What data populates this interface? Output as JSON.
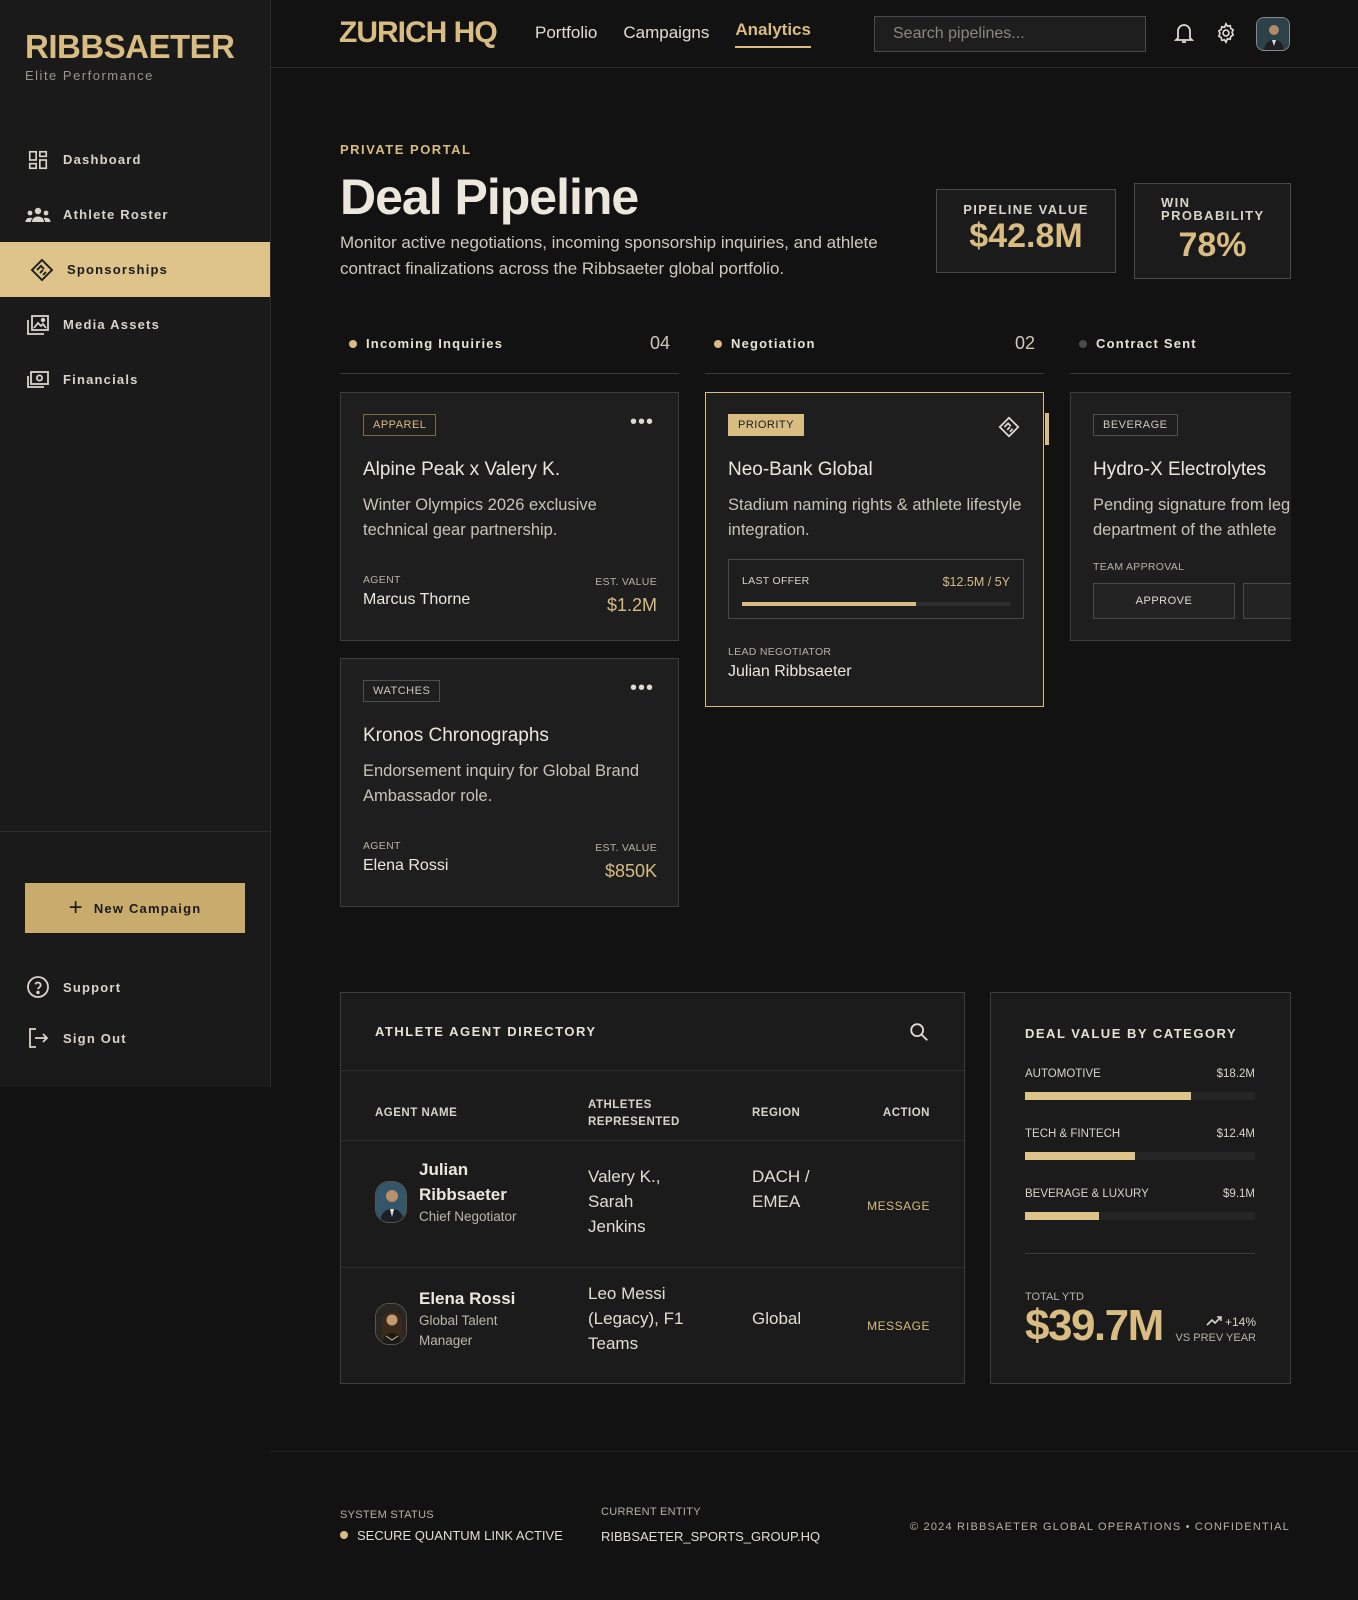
{
  "sidebar": {
    "brand": "RIBBSAETER",
    "tagline": "Elite Performance",
    "items": [
      {
        "label": "Dashboard",
        "icon": "dashboard-icon"
      },
      {
        "label": "Athlete Roster",
        "icon": "roster-icon"
      },
      {
        "label": "Sponsorships",
        "icon": "handshake-icon",
        "active": true
      },
      {
        "label": "Media Assets",
        "icon": "media-icon"
      },
      {
        "label": "Financials",
        "icon": "payments-icon"
      }
    ],
    "new_campaign": "New Campaign",
    "support": "Support",
    "sign_out": "Sign Out"
  },
  "header": {
    "title": "ZURICH HQ",
    "nav": [
      "Portfolio",
      "Campaigns",
      "Analytics"
    ],
    "active_nav": "Analytics",
    "search_placeholder": "Search pipelines..."
  },
  "page": {
    "eyebrow": "PRIVATE PORTAL",
    "title": "Deal Pipeline",
    "description": "Monitor active negotiations, incoming sponsorship inquiries, and athlete contract finalizations across the Ribbsaeter global portfolio."
  },
  "stats": {
    "pipeline_label": "PIPELINE VALUE",
    "pipeline_value": "$42.8M",
    "win_label": "WIN PROBABILITY",
    "win_value": "78%"
  },
  "columns": [
    {
      "label": "Incoming Inquiries",
      "count": "04"
    },
    {
      "label": "Negotiation",
      "count": "02"
    },
    {
      "label": "Contract Sent",
      "count": ""
    }
  ],
  "cards": {
    "alpine": {
      "tag": "APPAREL",
      "title": "Alpine Peak x Valery K.",
      "desc": "Winter Olympics 2026 exclusive technical gear partnership.",
      "agent_label": "AGENT",
      "agent": "Marcus Thorne",
      "value_label": "EST. VALUE",
      "value": "$1.2M"
    },
    "kronos": {
      "tag": "WATCHES",
      "title": "Kronos Chronographs",
      "desc": "Endorsement inquiry for Global Brand Ambassador role.",
      "agent_label": "AGENT",
      "agent": "Elena Rossi",
      "value_label": "EST. VALUE",
      "value": "$850K"
    },
    "neobank": {
      "tag": "PRIORITY",
      "title": "Neo-Bank Global",
      "desc": "Stadium naming rights & athlete lifestyle integration.",
      "offer_label": "LAST OFFER",
      "offer_value": "$12.5M / 5Y",
      "offer_progress": 0.65,
      "negotiator_label": "LEAD NEGOTIATOR",
      "negotiator": "Julian Ribbsaeter"
    },
    "hydro": {
      "tag": "BEVERAGE",
      "title": "Hydro-X Electrolytes",
      "desc": "Pending signature from legal department of the athlete",
      "approval_label": "TEAM APPROVAL",
      "approve": "APPROVE"
    }
  },
  "directory": {
    "title": "ATHLETE AGENT DIRECTORY",
    "headers": [
      "AGENT NAME",
      "ATHLETES REPRESENTED",
      "REGION",
      "ACTION"
    ],
    "rows": [
      {
        "name": "Julian Ribbsaeter",
        "role": "Chief Negotiator",
        "athletes": "Valery K., Sarah Jenkins",
        "region": "DACH / EMEA",
        "action": "MESSAGE"
      },
      {
        "name": "Elena Rossi",
        "role": "Global Talent Manager",
        "athletes": "Leo Messi (Legacy), F1 Teams",
        "region": "Global",
        "action": "MESSAGE"
      }
    ]
  },
  "categories": {
    "title": "DEAL VALUE BY CATEGORY",
    "items": [
      {
        "name": "AUTOMOTIVE",
        "value": "$18.2M",
        "fraction": 0.72
      },
      {
        "name": "TECH & FINTECH",
        "value": "$12.4M",
        "fraction": 0.48
      },
      {
        "name": "BEVERAGE & LUXURY",
        "value": "$9.1M",
        "fraction": 0.32
      }
    ],
    "total_label": "TOTAL YTD",
    "total_value": "$39.7M",
    "trend": "+14%",
    "trend_caption": "VS PREV YEAR"
  },
  "footer": {
    "status_label": "SYSTEM STATUS",
    "status_value": "SECURE QUANTUM LINK ACTIVE",
    "entity_label": "CURRENT ENTITY",
    "entity_value": "RIBBSAETER_SPORTS_GROUP.HQ",
    "copyright": "© 2024 RIBBSAETER GLOBAL OPERATIONS • CONFIDENTIAL"
  },
  "colors": {
    "accent": "#d8bc82",
    "background": "#121212",
    "panel": "#1b1b1b"
  }
}
